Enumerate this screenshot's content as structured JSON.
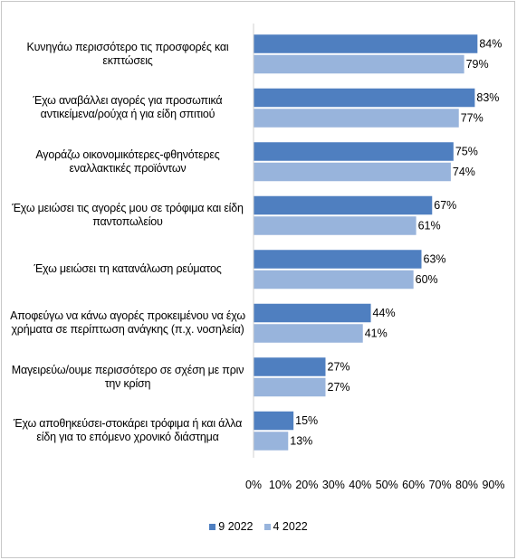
{
  "chart_data": {
    "type": "bar",
    "orientation": "horizontal",
    "categories": [
      "Κυνηγάω περισσότερο τις προσφορές και εκπτώσεις",
      "Έχω αναβάλλει αγορές για προσωπικά αντικείμενα/ρούχα ή για είδη σπιτιού",
      "Αγοράζω οικονομικότερες-φθηνότερες εναλλακτικές προϊόντων",
      "Έχω μειώσει τις αγορές μου σε τρόφιμα και είδη παντοπωλείου",
      "Έχω μειώσει τη κατανάλωση ρεύματος",
      "Αποφεύγω να κάνω αγορές προκειμένου να έχω χρήματα σε περίπτωση ανάγκης (π.χ. νοσηλεία)",
      "Μαγειρεύω/ουμε περισσότερο σε σχέση με πριν την κρίση",
      "Έχω αποθηκεύσει-στοκάρει τρόφιμα ή και άλλα είδη για το επόμενο χρονικό διάστημα"
    ],
    "series": [
      {
        "name": "9 2022",
        "color": "#4f7fc0",
        "values": [
          84,
          83,
          75,
          67,
          63,
          44,
          27,
          15
        ]
      },
      {
        "name": "4 2022",
        "color": "#98b4dc",
        "values": [
          79,
          77,
          74,
          61,
          60,
          41,
          27,
          13
        ]
      }
    ],
    "value_suffix": "%",
    "xlim": [
      0,
      90
    ],
    "xticks": [
      0,
      10,
      20,
      30,
      40,
      50,
      60,
      70,
      80,
      90
    ],
    "xtick_labels": [
      "0%",
      "10%",
      "20%",
      "30%",
      "40%",
      "50%",
      "60%",
      "70%",
      "80%",
      "90%"
    ],
    "grid": false,
    "legend_position": "bottom",
    "title": "",
    "xlabel": "",
    "ylabel": ""
  }
}
